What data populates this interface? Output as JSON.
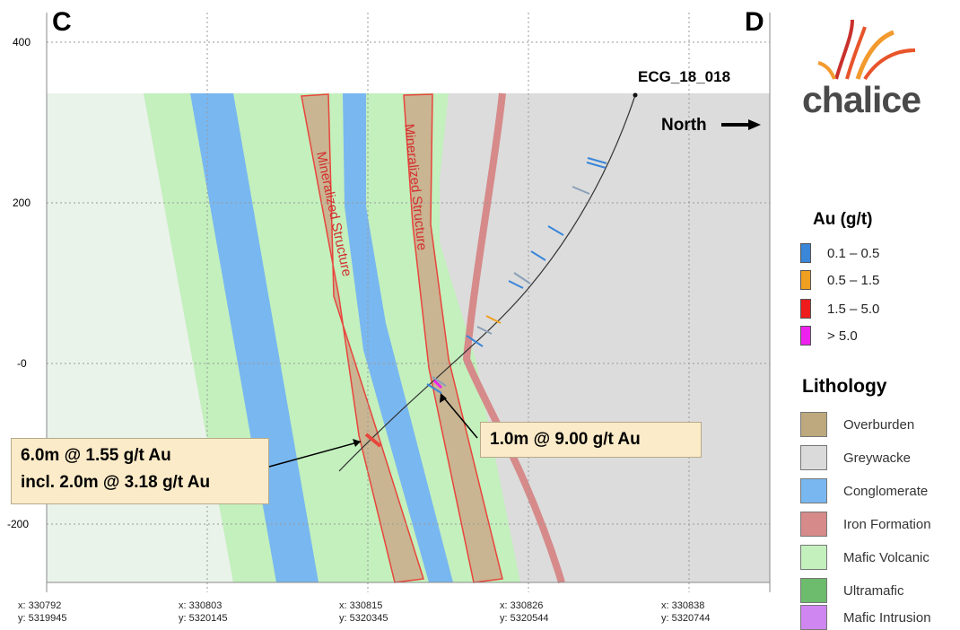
{
  "section": {
    "left_label": "C",
    "right_label": "D",
    "drillhole_label": "ECG_18_018",
    "north_label": "North",
    "structure_label_1": "Mineralized Structure",
    "structure_label_2": "Mineralized Structure"
  },
  "y_axis": {
    "ticks": [
      "400",
      "200",
      "-0",
      "-200"
    ]
  },
  "x_axis": {
    "ticks": [
      {
        "x": "x: 330792",
        "y": "y: 5319945"
      },
      {
        "x": "x: 330803",
        "y": "y: 5320145"
      },
      {
        "x": "x: 330815",
        "y": "y: 5320345"
      },
      {
        "x": "x: 330826",
        "y": "y: 5320544"
      },
      {
        "x": "x: 330838",
        "y": "y: 5320744"
      }
    ]
  },
  "callouts": {
    "lower_line1": "6.0m @ 1.55 g/t Au",
    "lower_line2": "incl. 2.0m @ 3.18 g/t Au",
    "upper": "1.0m @ 9.00 g/t Au"
  },
  "logo": {
    "text": "chalice",
    "accent_colors": [
      "#e8542a",
      "#f29a2e",
      "#c9302c"
    ]
  },
  "legend": {
    "au_title": "Au (g/t)",
    "au_items": [
      {
        "label": "0.1 – 0.5",
        "color": "#3a86d9"
      },
      {
        "label": "0.5 – 1.5",
        "color": "#f0a020"
      },
      {
        "label": "1.5 – 5.0",
        "color": "#ee1c1c"
      },
      {
        "label": "> 5.0",
        "color": "#ee22ee"
      }
    ],
    "lith_title": "Lithology",
    "lith_items": [
      {
        "label": "Overburden",
        "color": "#bda97d"
      },
      {
        "label": "Greywacke",
        "color": "#dadada"
      },
      {
        "label": "Conglomerate",
        "color": "#79b7f0"
      },
      {
        "label": "Iron Formation",
        "color": "#d68a8a"
      },
      {
        "label": "Mafic Volcanic",
        "color": "#c3f0bd"
      },
      {
        "label": "Ultramafic",
        "color": "#6dbb6d"
      },
      {
        "label": "Mafic Intrusion",
        "color": "#cf86f0"
      }
    ]
  }
}
